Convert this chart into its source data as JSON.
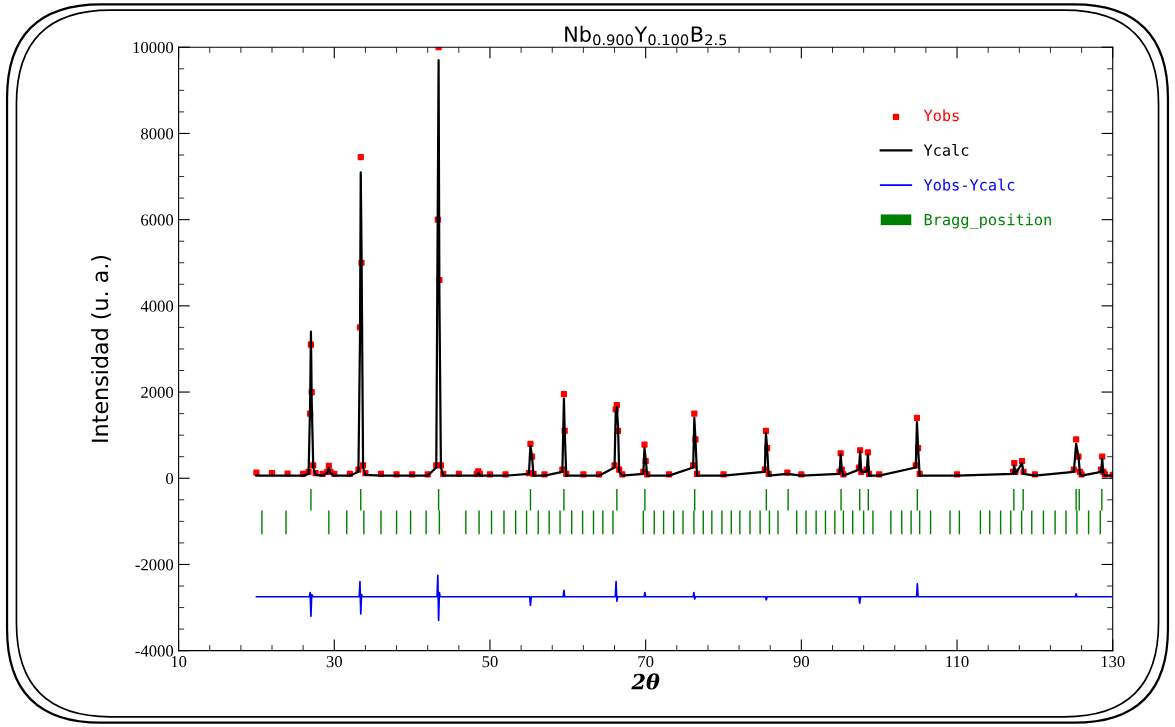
{
  "chart_data": {
    "type": "line",
    "title": "Nb$_{0.900}$Y$_{0.100}$B$_{2.5}$",
    "xlabel": "2θ",
    "ylabel": "Intensidad (u. a.)",
    "xlim": [
      10,
      130
    ],
    "xticks": [
      10,
      30,
      50,
      70,
      90,
      110,
      130
    ],
    "ylim": [
      -4000,
      10000
    ],
    "yticks": [
      -4000,
      -2000,
      0,
      2000,
      4000,
      6000,
      8000,
      10000
    ],
    "grid": false,
    "legend": "top right",
    "series": [
      {
        "name": "Yobs",
        "type": "scatter",
        "marker": "square",
        "color": "#ff0000",
        "x": [
          20,
          22,
          24,
          26,
          26.7,
          26.9,
          27.0,
          27.1,
          27.3,
          27.6,
          28.5,
          29.1,
          29.3,
          29.5,
          30,
          32,
          33.1,
          33.3,
          33.4,
          33.5,
          33.7,
          34,
          36,
          38,
          40,
          42,
          43.1,
          43.3,
          43.4,
          43.5,
          43.7,
          44,
          46,
          48.3,
          48.5,
          48.7,
          50,
          52,
          55.0,
          55.2,
          55.4,
          55.6,
          57,
          59.3,
          59.5,
          59.6,
          59.8,
          62,
          64,
          66.0,
          66.15,
          66.3,
          66.45,
          66.6,
          67,
          69.7,
          69.85,
          70.0,
          70.2,
          73,
          76.1,
          76.25,
          76.4,
          76.6,
          80,
          85.3,
          85.45,
          85.6,
          85.8,
          88.2,
          90,
          94.9,
          95.05,
          95.2,
          95.4,
          97.4,
          97.55,
          97.7,
          98.4,
          98.55,
          98.7,
          100,
          104.7,
          104.85,
          105.0,
          105.2,
          110,
          117.2,
          117.35,
          117.5,
          118.35,
          118.55,
          120,
          125.0,
          125.3,
          125.6,
          125.8,
          126,
          128.5,
          128.65,
          128.8,
          129,
          130
        ],
        "values": [
          130,
          120,
          110,
          100,
          150,
          1500,
          3100,
          2000,
          300,
          120,
          100,
          150,
          290,
          150,
          100,
          100,
          200,
          3500,
          7450,
          5000,
          300,
          120,
          100,
          90,
          90,
          90,
          300,
          6000,
          10000,
          4600,
          300,
          100,
          100,
          100,
          160,
          100,
          90,
          90,
          120,
          800,
          500,
          100,
          90,
          200,
          1950,
          1100,
          100,
          90,
          90,
          300,
          1600,
          1700,
          1100,
          200,
          90,
          150,
          780,
          400,
          90,
          90,
          300,
          1500,
          900,
          100,
          90,
          200,
          1100,
          700,
          100,
          130,
          90,
          150,
          580,
          200,
          90,
          250,
          650,
          150,
          200,
          600,
          100,
          90,
          300,
          1400,
          700,
          100,
          90,
          150,
          350,
          150,
          400,
          150,
          90,
          200,
          900,
          500,
          150,
          90,
          200,
          500,
          150,
          90,
          80
        ]
      },
      {
        "name": "Ycalc",
        "color": "#000000",
        "x": [
          20,
          22,
          24,
          26,
          26.7,
          26.9,
          27.0,
          27.1,
          27.3,
          27.6,
          28.5,
          29.1,
          29.3,
          29.5,
          30,
          32,
          33.1,
          33.3,
          33.4,
          33.5,
          33.7,
          34,
          36,
          38,
          40,
          42,
          43.1,
          43.3,
          43.4,
          43.5,
          43.7,
          44,
          46,
          48.3,
          48.5,
          48.7,
          50,
          52,
          55.0,
          55.2,
          55.4,
          55.6,
          57,
          59.3,
          59.5,
          59.6,
          59.8,
          62,
          64,
          66.0,
          66.15,
          66.3,
          66.45,
          66.6,
          67,
          69.7,
          69.85,
          70.0,
          70.2,
          73,
          76.1,
          76.25,
          76.4,
          76.6,
          80,
          85.3,
          85.45,
          85.6,
          85.8,
          88.2,
          90,
          94.9,
          95.05,
          95.2,
          95.4,
          97.4,
          97.55,
          97.7,
          98.4,
          98.55,
          98.7,
          100,
          104.7,
          104.85,
          105.0,
          105.2,
          110,
          117.2,
          117.35,
          117.5,
          118.35,
          118.55,
          120,
          125.0,
          125.3,
          125.6,
          125.8,
          126,
          128.5,
          128.65,
          128.8,
          129,
          130
        ],
        "values": [
          60,
          60,
          60,
          60,
          100,
          1800,
          3400,
          1800,
          250,
          80,
          60,
          120,
          250,
          120,
          60,
          60,
          150,
          3200,
          7100,
          5300,
          250,
          80,
          60,
          60,
          60,
          60,
          250,
          6500,
          9700,
          4300,
          250,
          60,
          60,
          60,
          120,
          60,
          60,
          60,
          100,
          750,
          500,
          60,
          60,
          150,
          1850,
          1100,
          60,
          60,
          60,
          250,
          1500,
          1650,
          1200,
          150,
          60,
          100,
          700,
          450,
          60,
          60,
          250,
          1400,
          900,
          60,
          60,
          150,
          1050,
          700,
          60,
          100,
          60,
          100,
          550,
          200,
          60,
          200,
          620,
          150,
          150,
          550,
          60,
          60,
          250,
          1300,
          700,
          60,
          60,
          100,
          300,
          100,
          350,
          100,
          60,
          150,
          800,
          500,
          100,
          60,
          150,
          450,
          100,
          60,
          60
        ]
      },
      {
        "name": "Yobs-Ycalc",
        "type": "line",
        "color": "#0000ff",
        "x": [
          20,
          26.8,
          26.9,
          27.0,
          27.1,
          27.3,
          33.2,
          33.3,
          33.4,
          33.5,
          33.6,
          43.2,
          43.3,
          43.4,
          43.5,
          43.6,
          55.1,
          55.2,
          55.3,
          59.4,
          59.5,
          59.6,
          66.1,
          66.2,
          66.3,
          66.4,
          69.8,
          69.9,
          70.0,
          76.1,
          76.2,
          76.3,
          76.4,
          85.4,
          85.5,
          85.6,
          97.4,
          97.5,
          97.6,
          104.8,
          104.9,
          105.0,
          125.2,
          125.3,
          125.4,
          130
        ],
        "values": [
          -2750,
          -2750,
          -2650,
          -3200,
          -2700,
          -2750,
          -2750,
          -2400,
          -3150,
          -2700,
          -2750,
          -2750,
          -2250,
          -3300,
          -2650,
          -2750,
          -2750,
          -2950,
          -2750,
          -2750,
          -2600,
          -2750,
          -2750,
          -2400,
          -2850,
          -2750,
          -2750,
          -2650,
          -2750,
          -2750,
          -2650,
          -2800,
          -2750,
          -2750,
          -2820,
          -2750,
          -2750,
          -2900,
          -2750,
          -2750,
          -2450,
          -2750,
          -2750,
          -2680,
          -2750,
          -2750
        ]
      },
      {
        "name": "Bragg_position",
        "type": "bar",
        "color": "#008000",
        "base": [
          -750,
          -750,
          -750,
          -750,
          -750,
          -750,
          -750,
          -750,
          -750,
          -750,
          -750,
          -750,
          -750,
          -750,
          -750,
          -750,
          -750,
          -750,
          -750
        ],
        "x": [
          27.0,
          33.4,
          43.4,
          55.2,
          59.5,
          66.3,
          69.9,
          76.3,
          85.5,
          88.3,
          95.1,
          97.5,
          98.6,
          104.9,
          117.3,
          118.5,
          125.3,
          125.7,
          128.6
        ],
        "values": [
          500,
          500,
          500,
          500,
          500,
          500,
          500,
          500,
          500,
          500,
          500,
          500,
          500,
          500,
          500,
          500,
          500,
          500,
          500
        ]
      },
      {
        "type": "bar",
        "color": "#008000",
        "base": [
          -1300,
          -1300,
          -1300,
          -1300,
          -1300,
          -1300,
          -1300,
          -1300,
          -1300,
          -1300,
          -1300,
          -1300,
          -1300,
          -1300,
          -1300,
          -1300,
          -1300,
          -1300,
          -1300,
          -1300,
          -1300,
          -1300,
          -1300,
          -1300,
          -1300,
          -1300,
          -1300,
          -1300,
          -1300,
          -1300,
          -1300,
          -1300,
          -1300,
          -1300,
          -1300,
          -1300,
          -1300,
          -1300,
          -1300,
          -1300,
          -1300,
          -1300,
          -1300,
          -1300,
          -1300,
          -1300,
          -1300,
          -1300,
          -1300,
          -1300,
          -1300,
          -1300,
          -1300,
          -1300,
          -1300,
          -1300,
          -1300,
          -1300,
          -1300,
          -1300,
          -1300,
          -1300,
          -1300,
          -1300,
          -1300,
          -1300,
          -1300
        ],
        "x": [
          20.7,
          23.8,
          29.3,
          31.6,
          33.8,
          36.0,
          38.0,
          39.8,
          41.8,
          43.5,
          46.9,
          48.6,
          50.2,
          51.8,
          53.3,
          54.7,
          56.2,
          57.6,
          59.0,
          60.5,
          61.9,
          63.3,
          64.5,
          65.8,
          69.7,
          71.1,
          72.3,
          73.6,
          74.8,
          76.2,
          77.4,
          78.5,
          79.8,
          81.0,
          82.1,
          83.4,
          84.7,
          85.9,
          87.0,
          89.4,
          90.6,
          91.9,
          93.1,
          94.3,
          95.4,
          96.6,
          98.0,
          99.2,
          101.5,
          102.9,
          104.1,
          105.2,
          106.6,
          109.1,
          110.3,
          113.0,
          114.2,
          115.6,
          116.9,
          118.3,
          119.6,
          121.1,
          122.6,
          124.0,
          125.4,
          126.9,
          128.4
        ],
        "values": [
          550,
          550,
          550,
          550,
          550,
          550,
          550,
          550,
          550,
          550,
          550,
          550,
          550,
          550,
          550,
          550,
          550,
          550,
          550,
          550,
          550,
          550,
          550,
          550,
          550,
          550,
          550,
          550,
          550,
          550,
          550,
          550,
          550,
          550,
          550,
          550,
          550,
          550,
          550,
          550,
          550,
          550,
          550,
          550,
          550,
          550,
          550,
          550,
          550,
          550,
          550,
          550,
          550,
          550,
          550,
          550,
          550,
          550,
          550,
          550,
          550,
          550,
          550,
          550,
          550,
          550,
          550
        ]
      }
    ]
  }
}
